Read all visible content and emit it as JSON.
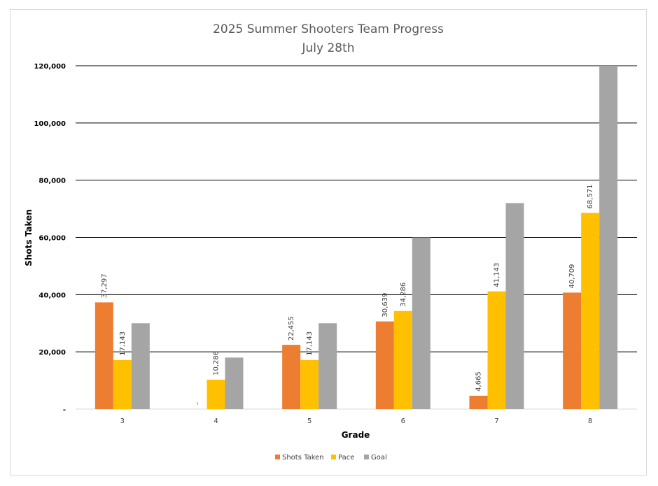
{
  "chart_data": {
    "type": "bar",
    "title": "2025 Summer Shooters Team Progress",
    "subtitle": "July 28th",
    "xlabel": "Grade",
    "ylabel": "Shots Taken",
    "categories": [
      "3",
      "4",
      "5",
      "6",
      "7",
      "8"
    ],
    "ylim": [
      0,
      120000
    ],
    "yticks": [
      0,
      20000,
      40000,
      60000,
      80000,
      100000,
      120000
    ],
    "ytick_labels": [
      "-",
      "20,000",
      "40,000",
      "60,000",
      "80,000",
      "100,000",
      "120,000"
    ],
    "grid": true,
    "legend_position": "bottom",
    "series": [
      {
        "name": "Shots Taken",
        "color": "#ed7d31",
        "values": [
          37297,
          0,
          22455,
          30639,
          4665,
          40709
        ],
        "labels": [
          "37,297",
          "-",
          "22,455",
          "30,639",
          "4,665",
          "40,709"
        ]
      },
      {
        "name": "Pace",
        "color": "#ffc000",
        "values": [
          17143,
          10286,
          17143,
          34286,
          41143,
          68571
        ],
        "labels": [
          "17,143",
          "10,286",
          "17,143",
          "34,286",
          "41,143",
          "68,571"
        ]
      },
      {
        "name": "Goal",
        "color": "#a5a5a5",
        "values": [
          30000,
          18000,
          30000,
          60000,
          72000,
          120000
        ],
        "labels": []
      }
    ]
  }
}
